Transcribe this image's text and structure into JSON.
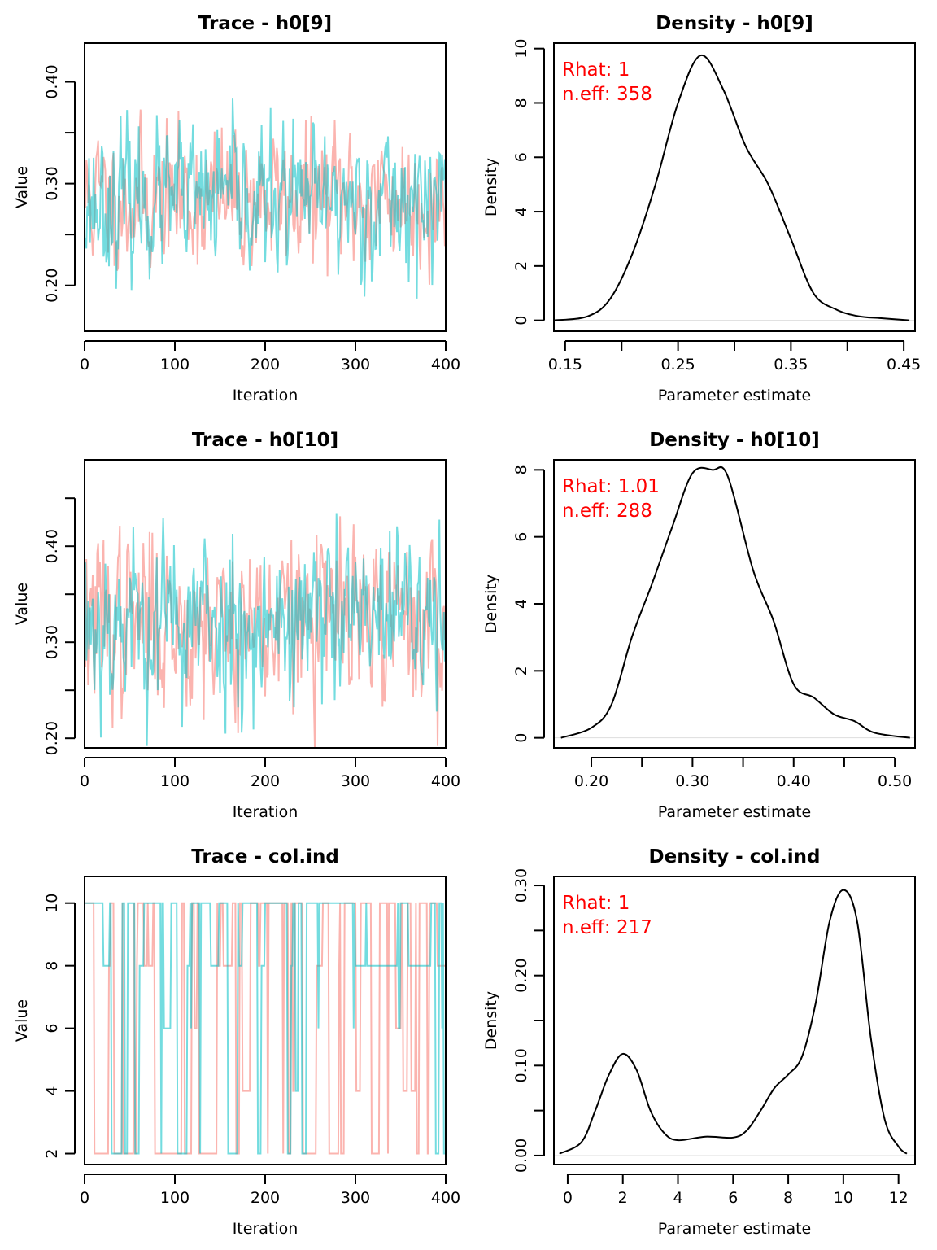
{
  "colors": {
    "chain1": "#F8766D",
    "chain2": "#00BFC4",
    "stats": "#FF0000",
    "density": "#000000",
    "zero_line": "#DDDDDD"
  },
  "chart_data": [
    {
      "type": "line",
      "title": "Trace - h0[9]",
      "xlabel": "Iteration",
      "ylabel": "Value",
      "xlim": [
        0,
        400
      ],
      "ylim": [
        0.155,
        0.438
      ],
      "xticks": [
        0,
        100,
        200,
        300,
        400
      ],
      "yticks": [
        0.2,
        0.25,
        0.3,
        0.35,
        0.4
      ],
      "ytick_labels": [
        "0.20",
        "",
        "0.30",
        "",
        "0.40"
      ],
      "series": [
        {
          "name": "chain 1",
          "mean": 0.285,
          "sd": 0.036,
          "seed": 11
        },
        {
          "name": "chain 2",
          "mean": 0.283,
          "sd": 0.036,
          "seed": 23
        }
      ],
      "n_iter": 400,
      "kind": "continuous"
    },
    {
      "type": "line",
      "title": "Density - h0[9]",
      "xlabel": "Parameter estimate",
      "ylabel": "Density",
      "xlim": [
        0.14,
        0.46
      ],
      "ylim": [
        -0.4,
        10.2
      ],
      "xticks": [
        0.15,
        0.2,
        0.25,
        0.3,
        0.35,
        0.4,
        0.45
      ],
      "xtick_labels": [
        "0.15",
        "",
        "0.25",
        "",
        "0.35",
        "",
        "0.45"
      ],
      "yticks": [
        0,
        2,
        4,
        6,
        8,
        10
      ],
      "ytick_labels": [
        "0",
        "2",
        "4",
        "6",
        "8",
        "10"
      ],
      "rhat": "Rhat: 1",
      "neff": "n.eff: 358",
      "x": [
        0.14,
        0.17,
        0.19,
        0.21,
        0.23,
        0.25,
        0.27,
        0.29,
        0.31,
        0.33,
        0.35,
        0.37,
        0.39,
        0.41,
        0.43,
        0.455
      ],
      "y": [
        0,
        0.15,
        0.8,
        2.5,
        5,
        8,
        9.75,
        8.5,
        6.4,
        5,
        3,
        1,
        0.4,
        0.15,
        0.08,
        0
      ]
    },
    {
      "type": "line",
      "title": "Trace - h0[10]",
      "xlabel": "Iteration",
      "ylabel": "Value",
      "xlim": [
        0,
        400
      ],
      "ylim": [
        0.19,
        0.49
      ],
      "xticks": [
        0,
        100,
        200,
        300,
        400
      ],
      "yticks": [
        0.2,
        0.25,
        0.3,
        0.35,
        0.4,
        0.45
      ],
      "ytick_labels": [
        "0.20",
        "",
        "0.30",
        "",
        "0.40",
        ""
      ],
      "series": [
        {
          "name": "chain 1",
          "mean": 0.322,
          "sd": 0.048,
          "seed": 37
        },
        {
          "name": "chain 2",
          "mean": 0.322,
          "sd": 0.048,
          "seed": 53
        }
      ],
      "n_iter": 400,
      "kind": "continuous"
    },
    {
      "type": "line",
      "title": "Density - h0[10]",
      "xlabel": "Parameter estimate",
      "ylabel": "Density",
      "xlim": [
        0.163,
        0.52
      ],
      "ylim": [
        -0.3,
        8.3
      ],
      "xticks": [
        0.2,
        0.25,
        0.3,
        0.35,
        0.4,
        0.45,
        0.5
      ],
      "xtick_labels": [
        "0.20",
        "",
        "0.30",
        "",
        "0.40",
        "",
        "0.50"
      ],
      "yticks": [
        0,
        2,
        4,
        6,
        8
      ],
      "ytick_labels": [
        "0",
        "2",
        "4",
        "6",
        "8"
      ],
      "rhat": "Rhat: 1.01",
      "neff": "n.eff: 288",
      "x": [
        0.17,
        0.2,
        0.22,
        0.24,
        0.26,
        0.28,
        0.3,
        0.32,
        0.335,
        0.36,
        0.38,
        0.4,
        0.42,
        0.44,
        0.46,
        0.48,
        0.515
      ],
      "y": [
        0,
        0.3,
        1,
        3,
        4.6,
        6.3,
        7.9,
        8,
        7.8,
        5,
        3.5,
        1.6,
        1.2,
        0.7,
        0.5,
        0.15,
        0
      ]
    },
    {
      "type": "line",
      "title": "Trace - col.ind",
      "xlabel": "Iteration",
      "ylabel": "Value",
      "xlim": [
        0,
        400
      ],
      "ylim": [
        1.65,
        10.85
      ],
      "xticks": [
        0,
        100,
        200,
        300,
        400
      ],
      "yticks": [
        2,
        4,
        6,
        8,
        10
      ],
      "ytick_labels": [
        "2",
        "4",
        "6",
        "8",
        "10"
      ],
      "series": [
        {
          "name": "chain 1",
          "seed": 71
        },
        {
          "name": "chain 2",
          "seed": 89
        }
      ],
      "n_iter": 400,
      "kind": "discrete",
      "levels": [
        2,
        4,
        5,
        6,
        8,
        10
      ]
    },
    {
      "type": "line",
      "title": "Density - col.ind",
      "xlabel": "Parameter estimate",
      "ylabel": "Density",
      "xlim": [
        -0.5,
        12.6
      ],
      "ylim": [
        -0.01,
        0.31
      ],
      "xticks": [
        0,
        2,
        4,
        6,
        8,
        10,
        12
      ],
      "xtick_labels": [
        "0",
        "2",
        "4",
        "6",
        "8",
        "10",
        "12"
      ],
      "yticks": [
        0,
        0.05,
        0.1,
        0.15,
        0.2,
        0.25,
        0.3
      ],
      "ytick_labels": [
        "0.00",
        "",
        "0.10",
        "",
        "0.20",
        "",
        "0.30"
      ],
      "rhat": "Rhat: 1",
      "neff": "n.eff: 217",
      "x": [
        -0.3,
        0.5,
        1,
        1.5,
        2,
        2.5,
        3,
        3.5,
        4,
        5,
        6,
        6.5,
        7,
        7.5,
        8,
        8.5,
        9,
        9.5,
        10,
        10.5,
        11,
        11.5,
        12,
        12.3
      ],
      "y": [
        0.002,
        0.015,
        0.05,
        0.09,
        0.113,
        0.095,
        0.05,
        0.025,
        0.017,
        0.021,
        0.02,
        0.028,
        0.05,
        0.075,
        0.09,
        0.11,
        0.17,
        0.26,
        0.295,
        0.26,
        0.13,
        0.04,
        0.01,
        0.002
      ]
    }
  ]
}
